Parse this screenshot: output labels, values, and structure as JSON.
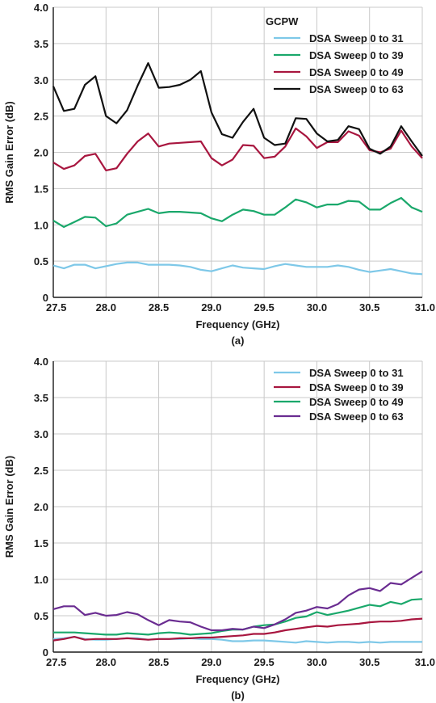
{
  "chart_data": [
    {
      "type": "line",
      "caption": "(a)",
      "xlabel": "Frequency (GHz)",
      "ylabel": "RMS Gain Error (dB)",
      "xlim": [
        27.5,
        31.0
      ],
      "ylim": [
        0,
        4.0
      ],
      "xticks": [
        "27.5",
        "28.0",
        "28.5",
        "29.0",
        "29.5",
        "30.0",
        "30.5",
        "31.0"
      ],
      "yticks": [
        "0",
        "0.5",
        "1.0",
        "1.5",
        "2.0",
        "2.5",
        "3.0",
        "3.5",
        "4.0"
      ],
      "grid": true,
      "legend_position": "top-right",
      "legend_title": "GCPW",
      "x": [
        27.5,
        27.6,
        27.7,
        27.8,
        27.9,
        28.0,
        28.1,
        28.2,
        28.3,
        28.4,
        28.5,
        28.6,
        28.7,
        28.8,
        28.9,
        29.0,
        29.1,
        29.2,
        29.3,
        29.4,
        29.5,
        29.6,
        29.7,
        29.8,
        29.9,
        30.0,
        30.1,
        30.2,
        30.3,
        30.4,
        30.5,
        30.6,
        30.7,
        30.8,
        30.9,
        31.0
      ],
      "series": [
        {
          "name": "DSA Sweep 0 to 31",
          "color": "#7ec8e8",
          "values": [
            0.44,
            0.4,
            0.45,
            0.45,
            0.4,
            0.43,
            0.46,
            0.48,
            0.48,
            0.45,
            0.45,
            0.45,
            0.44,
            0.42,
            0.38,
            0.36,
            0.4,
            0.44,
            0.41,
            0.4,
            0.39,
            0.43,
            0.46,
            0.44,
            0.42,
            0.42,
            0.42,
            0.44,
            0.42,
            0.38,
            0.35,
            0.37,
            0.39,
            0.36,
            0.33,
            0.32
          ]
        },
        {
          "name": "DSA Sweep 0 to 39",
          "color": "#1aa86b",
          "values": [
            1.06,
            0.97,
            1.04,
            1.11,
            1.1,
            0.98,
            1.02,
            1.14,
            1.18,
            1.22,
            1.16,
            1.18,
            1.18,
            1.17,
            1.16,
            1.09,
            1.05,
            1.14,
            1.21,
            1.19,
            1.14,
            1.14,
            1.24,
            1.35,
            1.31,
            1.24,
            1.28,
            1.28,
            1.33,
            1.32,
            1.21,
            1.21,
            1.3,
            1.37,
            1.24,
            1.18
          ]
        },
        {
          "name": "DSA Sweep 0 to 49",
          "color": "#a8163f",
          "values": [
            1.86,
            1.77,
            1.82,
            1.95,
            1.98,
            1.75,
            1.78,
            1.98,
            2.15,
            2.26,
            2.08,
            2.12,
            2.13,
            2.14,
            2.15,
            1.92,
            1.82,
            1.9,
            2.1,
            2.09,
            1.92,
            1.94,
            2.08,
            2.33,
            2.22,
            2.06,
            2.14,
            2.14,
            2.29,
            2.23,
            2.03,
            2.0,
            2.05,
            2.3,
            2.08,
            1.92
          ]
        },
        {
          "name": "DSA Sweep 0 to 63",
          "color": "#111111",
          "values": [
            2.91,
            2.57,
            2.6,
            2.93,
            3.05,
            2.5,
            2.4,
            2.58,
            2.92,
            3.23,
            2.89,
            2.9,
            2.93,
            3.0,
            3.12,
            2.55,
            2.25,
            2.2,
            2.42,
            2.6,
            2.2,
            2.1,
            2.12,
            2.47,
            2.46,
            2.26,
            2.15,
            2.17,
            2.36,
            2.32,
            2.05,
            1.98,
            2.08,
            2.36,
            2.15,
            1.95
          ]
        }
      ]
    },
    {
      "type": "line",
      "caption": "(b)",
      "xlabel": "Frequency (GHz)",
      "ylabel": "RMS Gain Error (dB)",
      "xlim": [
        27.5,
        31.0
      ],
      "ylim": [
        0,
        4.0
      ],
      "xticks": [
        "27.5",
        "28.0",
        "28.5",
        "29.0",
        "29.5",
        "30.0",
        "30.5",
        "31.0"
      ],
      "yticks": [
        "0",
        "0.5",
        "1.0",
        "1.5",
        "2.0",
        "2.5",
        "3.0",
        "3.5",
        "4.0"
      ],
      "grid": true,
      "legend_position": "top-right",
      "legend_title": "",
      "x": [
        27.5,
        27.6,
        27.7,
        27.8,
        27.9,
        28.0,
        28.1,
        28.2,
        28.3,
        28.4,
        28.5,
        28.6,
        28.7,
        28.8,
        28.9,
        29.0,
        29.1,
        29.2,
        29.3,
        29.4,
        29.5,
        29.6,
        29.7,
        29.8,
        29.9,
        30.0,
        30.1,
        30.2,
        30.3,
        30.4,
        30.5,
        30.6,
        30.7,
        30.8,
        30.9,
        31.0
      ],
      "series": [
        {
          "name": "DSA Sweep 0 to 31",
          "color": "#7ec8e8",
          "values": [
            0.18,
            0.19,
            0.21,
            0.18,
            0.17,
            0.17,
            0.18,
            0.19,
            0.19,
            0.17,
            0.18,
            0.18,
            0.18,
            0.19,
            0.18,
            0.18,
            0.17,
            0.15,
            0.15,
            0.16,
            0.16,
            0.15,
            0.14,
            0.13,
            0.15,
            0.14,
            0.13,
            0.14,
            0.14,
            0.13,
            0.14,
            0.13,
            0.14,
            0.14,
            0.14,
            0.14
          ]
        },
        {
          "name": "DSA Sweep 0 to 39",
          "color": "#a8163f",
          "values": [
            0.16,
            0.18,
            0.21,
            0.17,
            0.18,
            0.18,
            0.18,
            0.19,
            0.18,
            0.17,
            0.18,
            0.18,
            0.19,
            0.19,
            0.2,
            0.2,
            0.21,
            0.22,
            0.23,
            0.25,
            0.25,
            0.27,
            0.3,
            0.32,
            0.34,
            0.36,
            0.35,
            0.37,
            0.38,
            0.39,
            0.41,
            0.42,
            0.42,
            0.43,
            0.45,
            0.46
          ]
        },
        {
          "name": "DSA Sweep 0 to 49",
          "color": "#1aa86b",
          "values": [
            0.27,
            0.27,
            0.27,
            0.26,
            0.25,
            0.24,
            0.24,
            0.26,
            0.25,
            0.24,
            0.26,
            0.27,
            0.26,
            0.24,
            0.25,
            0.26,
            0.29,
            0.31,
            0.31,
            0.35,
            0.37,
            0.38,
            0.42,
            0.47,
            0.49,
            0.55,
            0.51,
            0.54,
            0.57,
            0.61,
            0.65,
            0.63,
            0.69,
            0.66,
            0.72,
            0.73
          ]
        },
        {
          "name": "DSA Sweep 0 to 63",
          "color": "#6a2c91",
          "values": [
            0.59,
            0.63,
            0.63,
            0.51,
            0.54,
            0.5,
            0.51,
            0.55,
            0.52,
            0.44,
            0.37,
            0.44,
            0.42,
            0.41,
            0.35,
            0.3,
            0.3,
            0.32,
            0.31,
            0.35,
            0.33,
            0.38,
            0.45,
            0.54,
            0.57,
            0.62,
            0.6,
            0.66,
            0.78,
            0.86,
            0.88,
            0.84,
            0.95,
            0.93,
            1.02,
            1.11
          ]
        }
      ]
    }
  ]
}
